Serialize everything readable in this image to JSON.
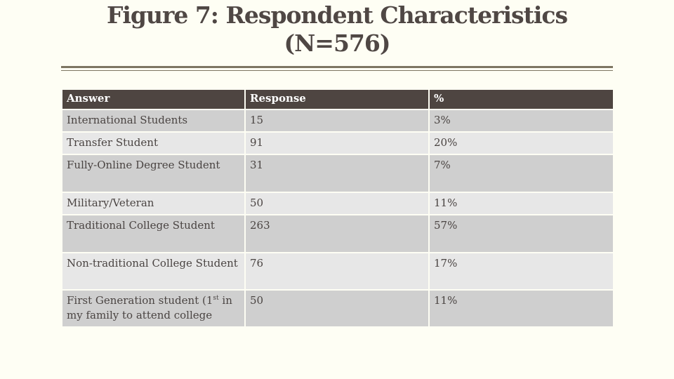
{
  "title": {
    "line1": "Figure 7:  Respondent Characteristics",
    "line2": "(N=576)"
  },
  "table": {
    "headers": [
      "Answer",
      "Response",
      "%"
    ],
    "rows": [
      {
        "answer": "International Students",
        "response": "15",
        "percent": "3%"
      },
      {
        "answer": "Transfer Student",
        "response": "91",
        "percent": "20%"
      },
      {
        "answer": "Fully-Online Degree Student",
        "response": "31",
        "percent": "7%"
      },
      {
        "answer": "Military/Veteran",
        "response": "50",
        "percent": "11%"
      },
      {
        "answer": "Traditional College Student",
        "response": "263",
        "percent": "57%"
      },
      {
        "answer": "Non-traditional College Student",
        "response": "76",
        "percent": "17%"
      },
      {
        "answer_pre": "First Generation student (1",
        "answer_sup": "st",
        "answer_post": " in my family to attend college",
        "response": "50",
        "percent": "11%"
      }
    ]
  },
  "colors": {
    "background": "#fefef4",
    "header_bg": "#4e4541",
    "row_dark": "#cfcfcf",
    "row_light": "#e7e7e7",
    "rule": "#7d7662"
  }
}
